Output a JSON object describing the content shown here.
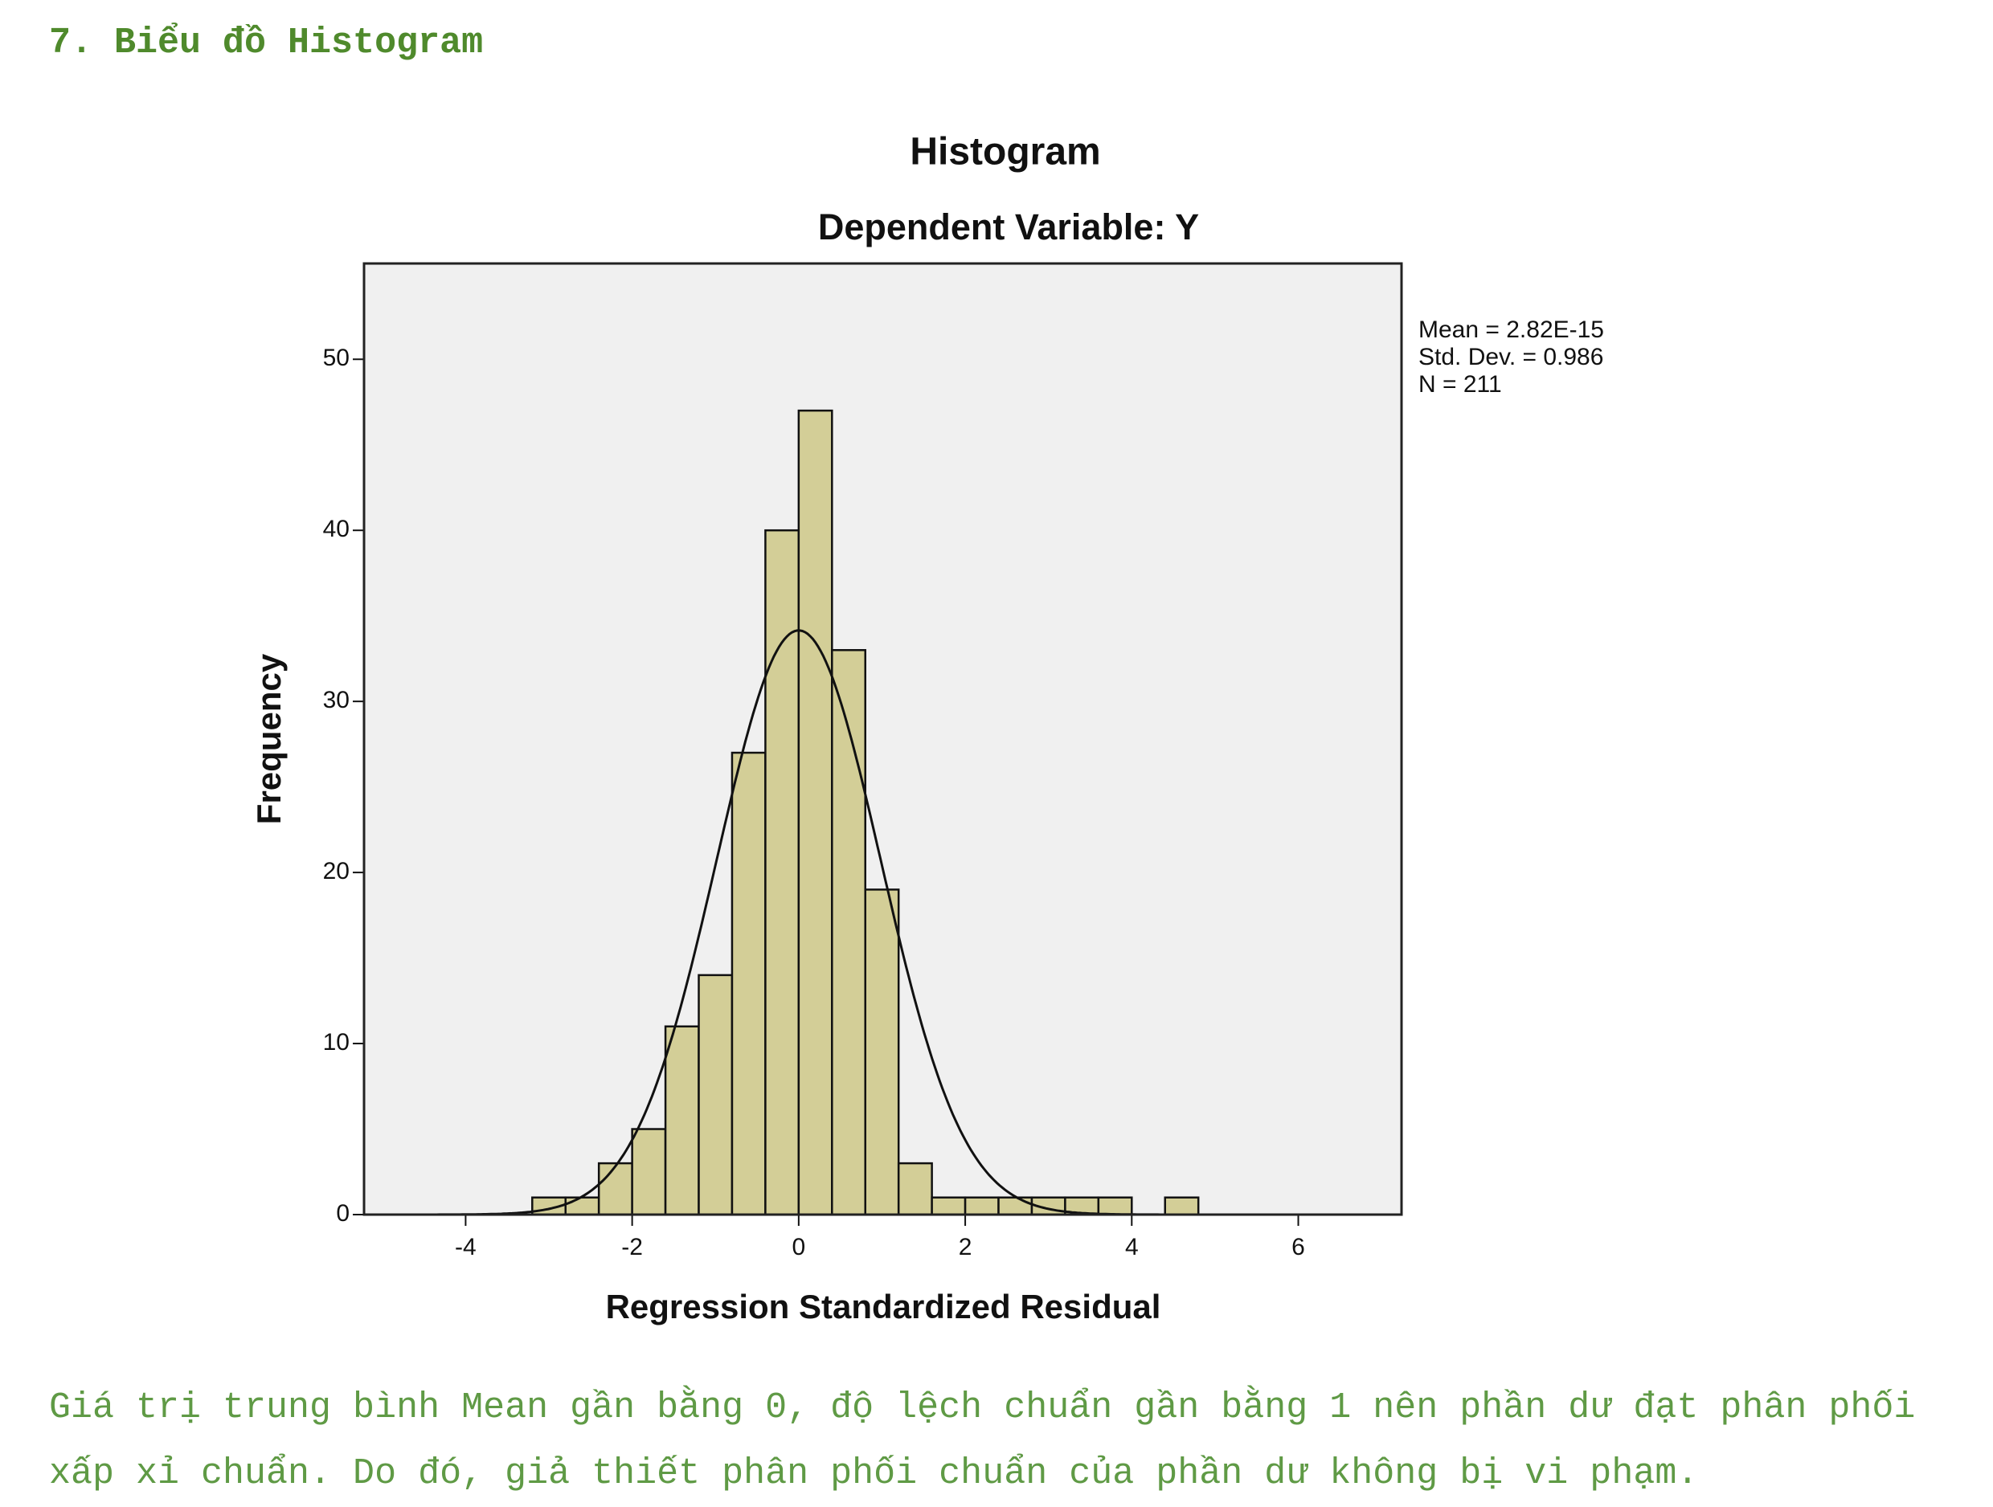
{
  "heading": "7. Biểu đồ Histogram",
  "chart_data": {
    "type": "histogram",
    "title": "Histogram",
    "subtitle": "Dependent Variable: Y",
    "x_label": "Regression Standardized Residual",
    "y_label": "Frequency",
    "bins": [
      -3.2,
      -2.8,
      -2.4,
      -2.0,
      -1.6,
      -1.2,
      -0.8,
      -0.4,
      0,
      0.4,
      0.8,
      1.2,
      1.6,
      2.0,
      2.4,
      2.8,
      3.2,
      3.6,
      4.0,
      4.4,
      4.8
    ],
    "counts": [
      1,
      1,
      3,
      5,
      11,
      14,
      27,
      40,
      47,
      33,
      19,
      3,
      1,
      1,
      1,
      1,
      1,
      1,
      0,
      1
    ],
    "color": "#d3ce97",
    "xlim": [
      -5.22,
      7.24
    ],
    "xticks": [
      -4,
      -2,
      0,
      2,
      4,
      6
    ],
    "ylim": [
      0,
      55.6
    ],
    "yticks": [
      0,
      10,
      20,
      30,
      40,
      50
    ],
    "stats": [
      {
        "value": 2.82e-15,
        "label": "Mean = 2.82E-15"
      },
      {
        "value": 0.986,
        "label": "Std. Dev. = 0.986"
      },
      {
        "value": 211,
        "label": "N = 211"
      }
    ],
    "normal_curve": true
  },
  "paragraph": "Giá trị trung bình Mean gần bằng 0, độ lệch chuẩn gần bằng 1 nên phần dư đạt phân phối xấp xỉ chuẩn. Do đó, giả thiết phân phối chuẩn của phần dư không bị vi phạm."
}
